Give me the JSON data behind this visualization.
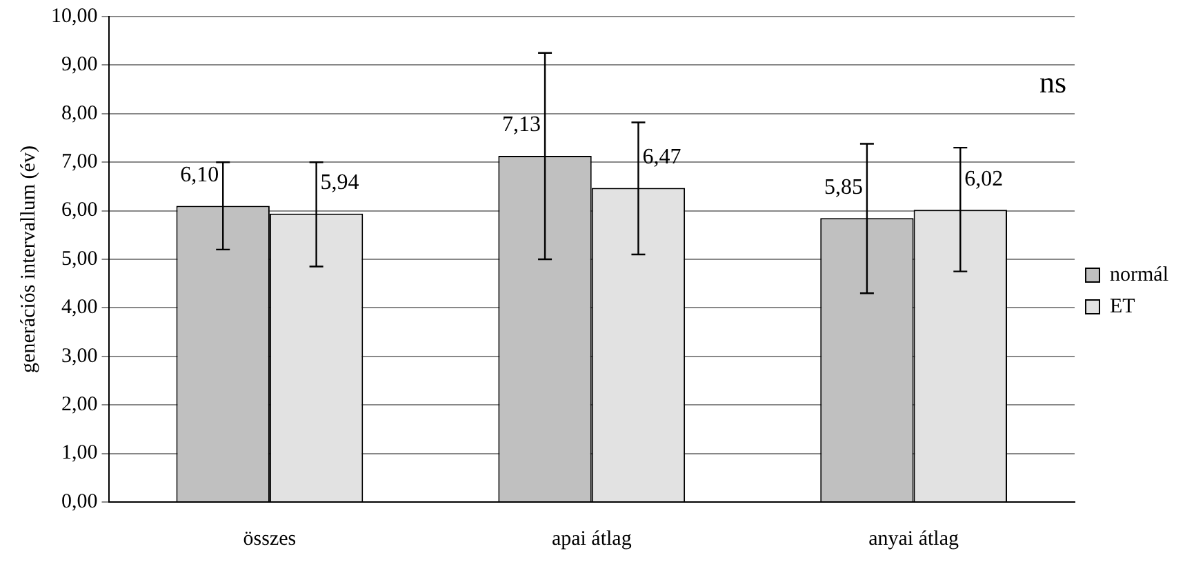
{
  "chart_data": {
    "type": "bar",
    "ylabel": "generációs intervallum (év)",
    "categories": [
      "összes",
      "apai átlag",
      "anyai átlag"
    ],
    "series": [
      {
        "name": "normál",
        "color": "#c0c0c0",
        "values": [
          6.1,
          7.13,
          5.85
        ],
        "value_labels": [
          "6,10",
          "7,13",
          "5,85"
        ],
        "errors": [
          [
            5.2,
            7.0
          ],
          [
            5.0,
            9.25
          ],
          [
            4.3,
            7.38
          ]
        ]
      },
      {
        "name": "ET",
        "color": "#e2e2e2",
        "values": [
          5.94,
          6.47,
          6.02
        ],
        "value_labels": [
          "5,94",
          "6,47",
          "6,02"
        ],
        "errors": [
          [
            4.85,
            7.0
          ],
          [
            5.1,
            7.82
          ],
          [
            4.75,
            7.3
          ]
        ]
      }
    ],
    "ylim": [
      0,
      10
    ],
    "yticks": [
      {
        "value": 0,
        "label": "0,00"
      },
      {
        "value": 1,
        "label": "1,00"
      },
      {
        "value": 2,
        "label": "2,00"
      },
      {
        "value": 3,
        "label": "3,00"
      },
      {
        "value": 4,
        "label": "4,00"
      },
      {
        "value": 5,
        "label": "5,00"
      },
      {
        "value": 6,
        "label": "6,00"
      },
      {
        "value": 7,
        "label": "7,00"
      },
      {
        "value": 8,
        "label": "8,00"
      },
      {
        "value": 9,
        "label": "9,00"
      },
      {
        "value": 10,
        "label": "10,00"
      }
    ],
    "annotations": [
      "ns"
    ],
    "grid": "y",
    "legend": "right"
  }
}
